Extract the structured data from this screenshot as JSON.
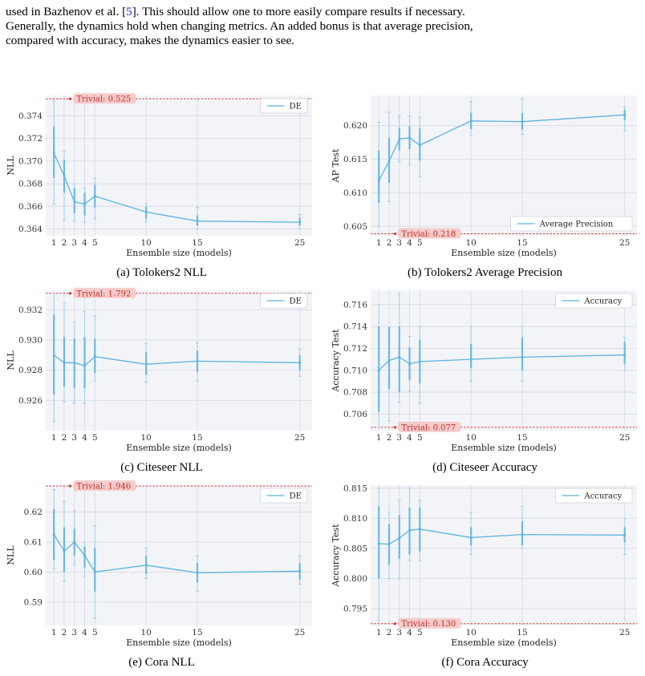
{
  "intro": {
    "line1_prefix": "used in Bazhenov et al. [",
    "line1_ref": "5",
    "line1_suffix": "].  This should allow one to more easily compare results if necessary.",
    "line2": "Generally, the dynamics hold when changing metrics.  An added bonus is that average precision,",
    "line3": "compared with accuracy, makes the dynamics easier to see."
  },
  "chart_data": [
    {
      "id": "a",
      "type": "line",
      "caption": "(a) Tolokers2 NLL",
      "xlabel": "Ensemble size (models)",
      "ylabel": "NLL",
      "xticks": [
        1,
        2,
        3,
        4,
        5,
        10,
        15,
        25
      ],
      "xlim": [
        0.2,
        26.2
      ],
      "ylim": [
        0.3634,
        0.3758
      ],
      "yticks": [
        "0.364",
        "0.366",
        "0.368",
        "0.370",
        "0.372",
        "0.374"
      ],
      "series": [
        {
          "name": "DE",
          "color": "#5ab4e0",
          "x": [
            1,
            2,
            3,
            4,
            5,
            10,
            15,
            25
          ],
          "y": [
            0.3707,
            0.3687,
            0.3664,
            0.3662,
            0.3669,
            0.3655,
            0.3647,
            0.3646
          ],
          "err_inner": [
            [
              0.3685,
              0.3731
            ],
            [
              0.3672,
              0.3701
            ],
            [
              0.3654,
              0.3676
            ],
            [
              0.3652,
              0.3672
            ],
            [
              0.3659,
              0.3679
            ],
            [
              0.3649,
              0.366
            ],
            [
              0.3643,
              0.3652
            ],
            [
              0.3643,
              0.365
            ]
          ],
          "err_outer": [
            [
              0.3662,
              0.3753
            ],
            [
              0.3648,
              0.3709
            ],
            [
              0.3647,
              0.368
            ],
            [
              0.3646,
              0.3676
            ],
            [
              0.3649,
              0.3685
            ],
            [
              0.3646,
              0.3662
            ],
            [
              0.364,
              0.3659
            ],
            [
              0.364,
              0.3653
            ]
          ]
        }
      ],
      "trivial": {
        "label": "Trivial: 0.525",
        "y": 0.3755
      },
      "legend": "top-right"
    },
    {
      "id": "b",
      "type": "line",
      "caption": "(b) Tolokers2 Average Precision",
      "xlabel": "Ensemble size (models)",
      "ylabel": "AP Test",
      "xticks": [
        1,
        2,
        3,
        4,
        5,
        10,
        15,
        25
      ],
      "xlim": [
        0.2,
        26.2
      ],
      "ylim": [
        0.6036,
        0.6245
      ],
      "yticks": [
        "0.605",
        "0.610",
        "0.615",
        "0.620"
      ],
      "series": [
        {
          "name": "Average Precision",
          "color": "#5ab4e0",
          "x": [
            1,
            2,
            3,
            4,
            5,
            10,
            15,
            25
          ],
          "y": [
            0.6118,
            0.6147,
            0.618,
            0.6182,
            0.6171,
            0.6207,
            0.6206,
            0.6216
          ],
          "err_inner": [
            [
              0.6085,
              0.6163
            ],
            [
              0.6115,
              0.6182
            ],
            [
              0.6163,
              0.6197
            ],
            [
              0.6165,
              0.6199
            ],
            [
              0.6148,
              0.6196
            ],
            [
              0.6195,
              0.6219
            ],
            [
              0.6194,
              0.6219
            ],
            [
              0.6208,
              0.6224
            ]
          ],
          "err_outer": [
            [
              0.605,
              0.6205
            ],
            [
              0.6087,
              0.622
            ],
            [
              0.6146,
              0.6215
            ],
            [
              0.6142,
              0.6214
            ],
            [
              0.6124,
              0.6213
            ],
            [
              0.6186,
              0.6236
            ],
            [
              0.6187,
              0.624
            ],
            [
              0.6192,
              0.6228
            ]
          ]
        }
      ],
      "trivial": {
        "label": "Trivial: 0.218",
        "y": 0.6039
      },
      "legend": "bottom-right"
    },
    {
      "id": "c",
      "type": "line",
      "caption": "(c) Citeseer NLL",
      "xlabel": "Ensemble size (models)",
      "ylabel": "NLL",
      "xticks": [
        1,
        2,
        3,
        4,
        5,
        10,
        15,
        25
      ],
      "xlim": [
        0.2,
        26.2
      ],
      "ylim": [
        0.924,
        0.9333
      ],
      "yticks": [
        "0.926",
        "0.928",
        "0.930",
        "0.932"
      ],
      "series": [
        {
          "name": "DE",
          "color": "#5ab4e0",
          "x": [
            1,
            2,
            3,
            4,
            5,
            10,
            15,
            25
          ],
          "y": [
            0.929,
            0.9285,
            0.9285,
            0.9283,
            0.9289,
            0.9284,
            0.9286,
            0.9285
          ],
          "err_inner": [
            [
              0.9264,
              0.9317
            ],
            [
              0.9269,
              0.9302
            ],
            [
              0.9268,
              0.9301
            ],
            [
              0.9268,
              0.9302
            ],
            [
              0.9278,
              0.9301
            ],
            [
              0.9277,
              0.9292
            ],
            [
              0.9279,
              0.9293
            ],
            [
              0.928,
              0.929
            ]
          ],
          "err_outer": [
            [
              0.9246,
              0.9331
            ],
            [
              0.9259,
              0.9324
            ],
            [
              0.9258,
              0.9312
            ],
            [
              0.9258,
              0.9319
            ],
            [
              0.9273,
              0.9316
            ],
            [
              0.9272,
              0.9298
            ],
            [
              0.9273,
              0.9298
            ],
            [
              0.9276,
              0.9294
            ]
          ]
        }
      ],
      "trivial": {
        "label": "Trivial: 1.792",
        "y": 0.9331
      },
      "legend": "top-right"
    },
    {
      "id": "d",
      "type": "line",
      "caption": "(d) Citeseer Accuracy",
      "xlabel": "Ensemble size (models)",
      "ylabel": "Accuracy Test",
      "xticks": [
        1,
        2,
        3,
        4,
        5,
        10,
        15,
        25
      ],
      "xlim": [
        0.2,
        26.2
      ],
      "ylim": [
        0.7045,
        0.7173
      ],
      "yticks": [
        "0.706",
        "0.708",
        "0.710",
        "0.712",
        "0.714",
        "0.716"
      ],
      "series": [
        {
          "name": "Accuracy",
          "color": "#5ab4e0",
          "x": [
            1,
            2,
            3,
            4,
            5,
            10,
            15,
            25
          ],
          "y": [
            0.71,
            0.7109,
            0.7112,
            0.7106,
            0.7108,
            0.711,
            0.7112,
            0.7114
          ],
          "err_inner": [
            [
              0.7062,
              0.714
            ],
            [
              0.7083,
              0.7139
            ],
            [
              0.708,
              0.714
            ],
            [
              0.7091,
              0.7121
            ],
            [
              0.7088,
              0.7128
            ],
            [
              0.7102,
              0.7124
            ],
            [
              0.71,
              0.713
            ],
            [
              0.7106,
              0.7126
            ]
          ],
          "err_outer": [
            [
              0.7048,
              0.716
            ],
            [
              0.7054,
              0.7139
            ],
            [
              0.7071,
              0.717
            ],
            [
              0.7081,
              0.7131
            ],
            [
              0.707,
              0.714
            ],
            [
              0.709,
              0.714
            ],
            [
              0.709,
              0.714
            ],
            [
              0.71,
              0.713
            ]
          ]
        }
      ],
      "trivial": {
        "label": "Trivial: 0.077",
        "y": 0.7048
      },
      "legend": "top-right"
    },
    {
      "id": "e",
      "type": "line",
      "caption": "(e) Cora NLL",
      "xlabel": "Ensemble size (models)",
      "ylabel": "NLL",
      "xticks": [
        1,
        2,
        3,
        4,
        5,
        10,
        15,
        25
      ],
      "xlim": [
        0.2,
        26.2
      ],
      "ylim": [
        0.5822,
        0.629
      ],
      "yticks": [
        "0.59",
        "0.60",
        "0.61",
        "0.62"
      ],
      "series": [
        {
          "name": "DE",
          "color": "#5ab4e0",
          "x": [
            1,
            2,
            3,
            4,
            5,
            10,
            15,
            25
          ],
          "y": [
            0.6125,
            0.607,
            0.61,
            0.6055,
            0.6,
            0.6023,
            0.5998,
            0.6003
          ],
          "err_inner": [
            [
              0.604,
              0.621
            ],
            [
              0.6,
              0.615
            ],
            [
              0.6055,
              0.6145
            ],
            [
              0.6015,
              0.6085
            ],
            [
              0.5935,
              0.608
            ],
            [
              0.5995,
              0.6055
            ],
            [
              0.5965,
              0.603
            ],
            [
              0.5975,
              0.603
            ]
          ],
          "err_outer": [
            [
              0.601,
              0.6275
            ],
            [
              0.597,
              0.6235
            ],
            [
              0.6025,
              0.6205
            ],
            [
              0.5985,
              0.61
            ],
            [
              0.5845,
              0.6155
            ],
            [
              0.598,
              0.608
            ],
            [
              0.5935,
              0.6055
            ],
            [
              0.596,
              0.6055
            ]
          ]
        }
      ],
      "trivial": {
        "label": "Trivial: 1.946",
        "y": 0.6287
      },
      "legend": "top-right"
    },
    {
      "id": "f",
      "type": "line",
      "caption": "(f) Cora Accuracy",
      "xlabel": "Ensemble size (models)",
      "ylabel": "Accuracy Test",
      "xticks": [
        1,
        2,
        3,
        4,
        5,
        10,
        15,
        25
      ],
      "xlim": [
        0.2,
        26.2
      ],
      "ylim": [
        0.7922,
        0.8155
      ],
      "yticks": [
        "0.795",
        "0.800",
        "0.805",
        "0.810",
        "0.815"
      ],
      "series": [
        {
          "name": "Accuracy",
          "color": "#5ab4e0",
          "x": [
            1,
            2,
            3,
            4,
            5,
            10,
            15,
            25
          ],
          "y": [
            0.8058,
            0.8057,
            0.8067,
            0.808,
            0.8082,
            0.8068,
            0.8073,
            0.8072
          ],
          "err_inner": [
            [
              0.8,
              0.812
            ],
            [
              0.8023,
              0.809
            ],
            [
              0.8033,
              0.8105
            ],
            [
              0.804,
              0.8118
            ],
            [
              0.8045,
              0.8118
            ],
            [
              0.8055,
              0.8085
            ],
            [
              0.8055,
              0.8095
            ],
            [
              0.806,
              0.8085
            ]
          ],
          "err_outer": [
            [
              0.793,
              0.815
            ],
            [
              0.8,
              0.811
            ],
            [
              0.8,
              0.813
            ],
            [
              0.803,
              0.815
            ],
            [
              0.803,
              0.813
            ],
            [
              0.804,
              0.811
            ],
            [
              0.805,
              0.812
            ],
            [
              0.804,
              0.81
            ]
          ]
        }
      ],
      "trivial": {
        "label": "Trivial: 0.130",
        "y": 0.7925
      },
      "legend": "top-right"
    }
  ]
}
